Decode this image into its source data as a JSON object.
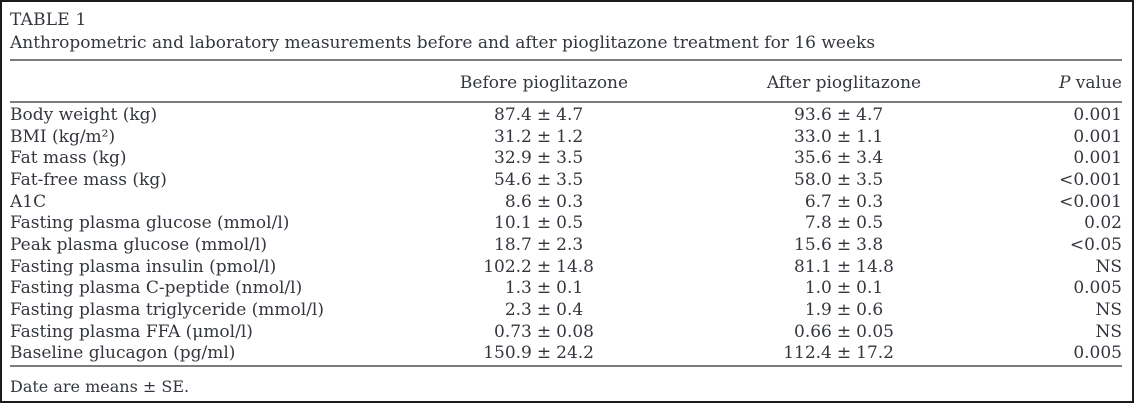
{
  "table": {
    "label": "TABLE 1",
    "caption": "Anthropometric and laboratory measurements before and after pioglitazone treatment for 16 weeks",
    "pm_sign": "±",
    "columns": {
      "parameter": "",
      "before": "Before pioglitazone",
      "after": "After pioglitazone",
      "p_italic": "P",
      "p_rest": " value"
    },
    "rows": [
      {
        "parameter": "Body weight (kg)",
        "before_mean": "87.4",
        "before_se": "4.7",
        "after_mean": "93.6",
        "after_se": "4.7",
        "p": "0.001"
      },
      {
        "parameter": "BMI (kg/m²)",
        "before_mean": "31.2",
        "before_se": "1.2",
        "after_mean": "33.0",
        "after_se": "1.1",
        "p": "0.001"
      },
      {
        "parameter": "Fat mass (kg)",
        "before_mean": "32.9",
        "before_se": "3.5",
        "after_mean": "35.6",
        "after_se": "3.4",
        "p": "0.001"
      },
      {
        "parameter": "Fat-free mass (kg)",
        "before_mean": "54.6",
        "before_se": "3.5",
        "after_mean": "58.0",
        "after_se": "3.5",
        "p": "<0.001"
      },
      {
        "parameter": "A1C",
        "before_mean": "8.6",
        "before_se": "0.3",
        "after_mean": "6.7",
        "after_se": "0.3",
        "p": "<0.001"
      },
      {
        "parameter": "Fasting plasma glucose (mmol/l)",
        "before_mean": "10.1",
        "before_se": "0.5",
        "after_mean": "7.8",
        "after_se": "0.5",
        "p": "0.02"
      },
      {
        "parameter": "Peak plasma glucose (mmol/l)",
        "before_mean": "18.7",
        "before_se": "2.3",
        "after_mean": "15.6",
        "after_se": "3.8",
        "p": "<0.05"
      },
      {
        "parameter": "Fasting plasma insulin (pmol/l)",
        "before_mean": "102.2",
        "before_se": "14.8",
        "after_mean": "81.1",
        "after_se": "14.8",
        "p": "NS"
      },
      {
        "parameter": "Fasting plasma C-peptide (nmol/l)",
        "before_mean": "1.3",
        "before_se": "0.1",
        "after_mean": "1.0",
        "after_se": "0.1",
        "p": "0.005"
      },
      {
        "parameter": "Fasting plasma triglyceride (mmol/l)",
        "before_mean": "2.3",
        "before_se": "0.4",
        "after_mean": "1.9",
        "after_se": "0.6",
        "p": "NS"
      },
      {
        "parameter": "Fasting plasma FFA (μmol/l)",
        "before_mean": "0.73",
        "before_se": "0.08",
        "after_mean": "0.66",
        "after_se": "0.05",
        "p": "NS"
      },
      {
        "parameter": "Baseline glucagon (pg/ml)",
        "before_mean": "150.9",
        "before_se": "24.2",
        "after_mean": "112.4",
        "after_se": "17.2",
        "p": "0.005"
      }
    ],
    "footnote": "Date are means ± SE."
  }
}
